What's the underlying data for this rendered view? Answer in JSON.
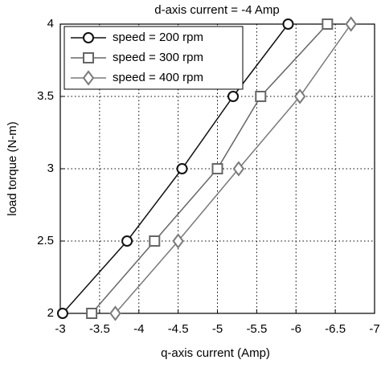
{
  "chart_data": {
    "type": "line",
    "title": "d-axis current = -4 Amp",
    "x_label": "q-axis current (Amp)",
    "y_label": "load torque (N-m)",
    "xlim": [
      -3,
      -7
    ],
    "xticks": [
      -3,
      -3.5,
      -4,
      -4.5,
      -5,
      -5.5,
      -6,
      -6.5,
      -7
    ],
    "ylim": [
      2,
      4
    ],
    "yticks": [
      2,
      2.5,
      3,
      3.5,
      4
    ],
    "grid": true,
    "legend": "upper left",
    "series": [
      {
        "name": "speed = 200 rpm",
        "color": "#111111",
        "marker": "circle",
        "x": [
          -3.03,
          -3.85,
          -4.55,
          -5.2,
          -5.9
        ],
        "values": [
          2,
          2.5,
          3,
          3.5,
          4
        ]
      },
      {
        "name": "speed = 300 rpm",
        "color": "#666666",
        "marker": "square",
        "x": [
          -3.4,
          -4.2,
          -5.0,
          -5.55,
          -6.4
        ],
        "values": [
          2,
          2.5,
          3,
          3.5,
          4
        ]
      },
      {
        "name": "speed = 400 rpm",
        "color": "#7a7a7a",
        "marker": "diamond",
        "x": [
          -3.7,
          -4.5,
          -5.27,
          -6.05,
          -6.7
        ],
        "values": [
          2,
          2.5,
          3,
          3.5,
          4
        ]
      }
    ]
  }
}
